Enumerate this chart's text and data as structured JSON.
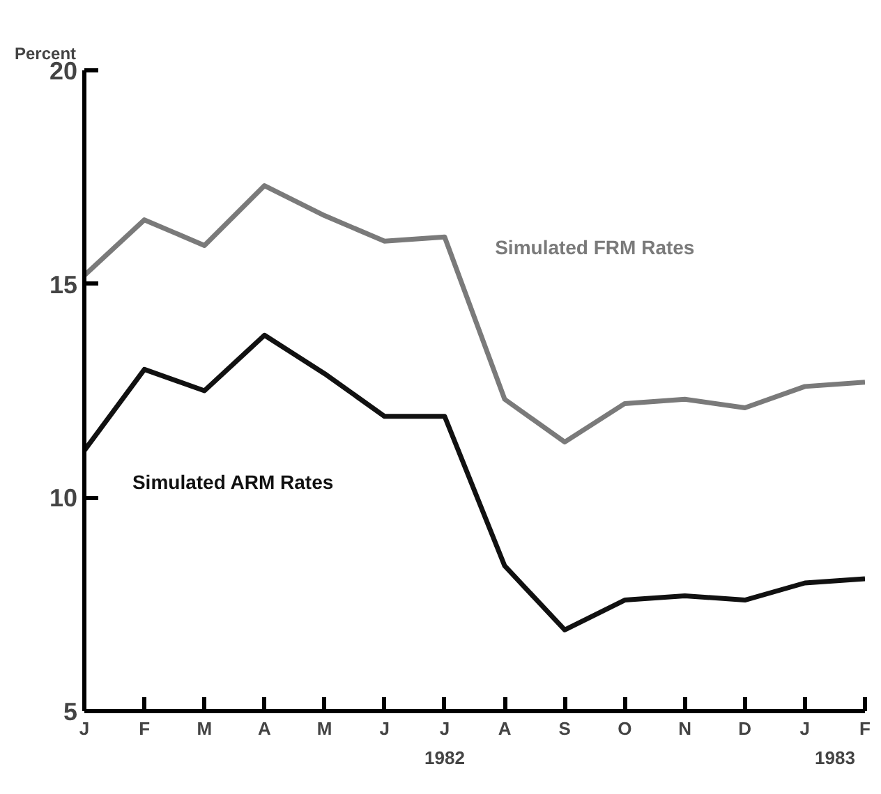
{
  "chart_data": {
    "type": "line",
    "ylabel": "Percent",
    "categories": [
      "J",
      "F",
      "M",
      "A",
      "M",
      "J",
      "J",
      "A",
      "S",
      "O",
      "N",
      "D",
      "J",
      "F"
    ],
    "series": [
      {
        "name": "Simulated FRM Rates",
        "color": "#7a7a7a",
        "values": [
          15.2,
          16.5,
          15.9,
          17.3,
          16.6,
          16.0,
          16.1,
          12.3,
          11.3,
          12.2,
          12.3,
          12.1,
          12.6,
          12.7
        ]
      },
      {
        "name": "Simulated ARM Rates",
        "color": "#111111",
        "values": [
          11.1,
          13.0,
          12.5,
          13.8,
          12.9,
          11.9,
          11.9,
          8.4,
          6.9,
          7.6,
          7.7,
          7.6,
          8.0,
          8.1
        ]
      }
    ],
    "ylim": [
      5,
      20
    ],
    "yticks": [
      5,
      10,
      15,
      20
    ],
    "grid": false,
    "marker": "none",
    "line_style": "solid",
    "annotations": [
      "1982",
      "1983"
    ]
  }
}
